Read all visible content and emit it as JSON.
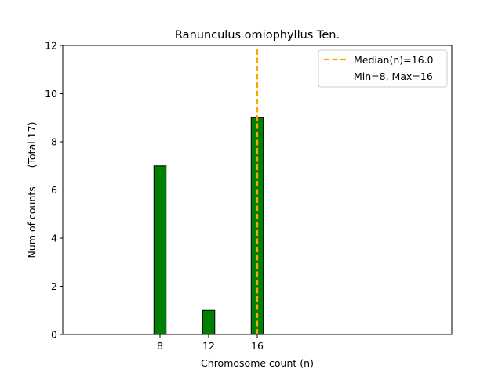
{
  "chart_data": {
    "type": "bar",
    "title": "Ranunculus omiophyllus Ten.",
    "xlabel": "Chromosome count (n)",
    "ylabel": "Num of counts      (Total 17)",
    "x": [
      8,
      12,
      16
    ],
    "values": [
      7,
      1,
      9
    ],
    "xticks": [
      "8",
      "12",
      "16"
    ],
    "yticks": [
      "0",
      "2",
      "4",
      "6",
      "8",
      "10",
      "12"
    ],
    "ylim": [
      0,
      12
    ],
    "xlim": [
      0,
      32
    ],
    "bar_color": "#008000",
    "bar_edge_color": "#000000",
    "median": 16.0,
    "median_color": "#FFA500",
    "legend": {
      "position": "top-right",
      "entries": [
        "Median(n)=16.0",
        "Min=8, Max=16"
      ]
    },
    "grid": false
  }
}
